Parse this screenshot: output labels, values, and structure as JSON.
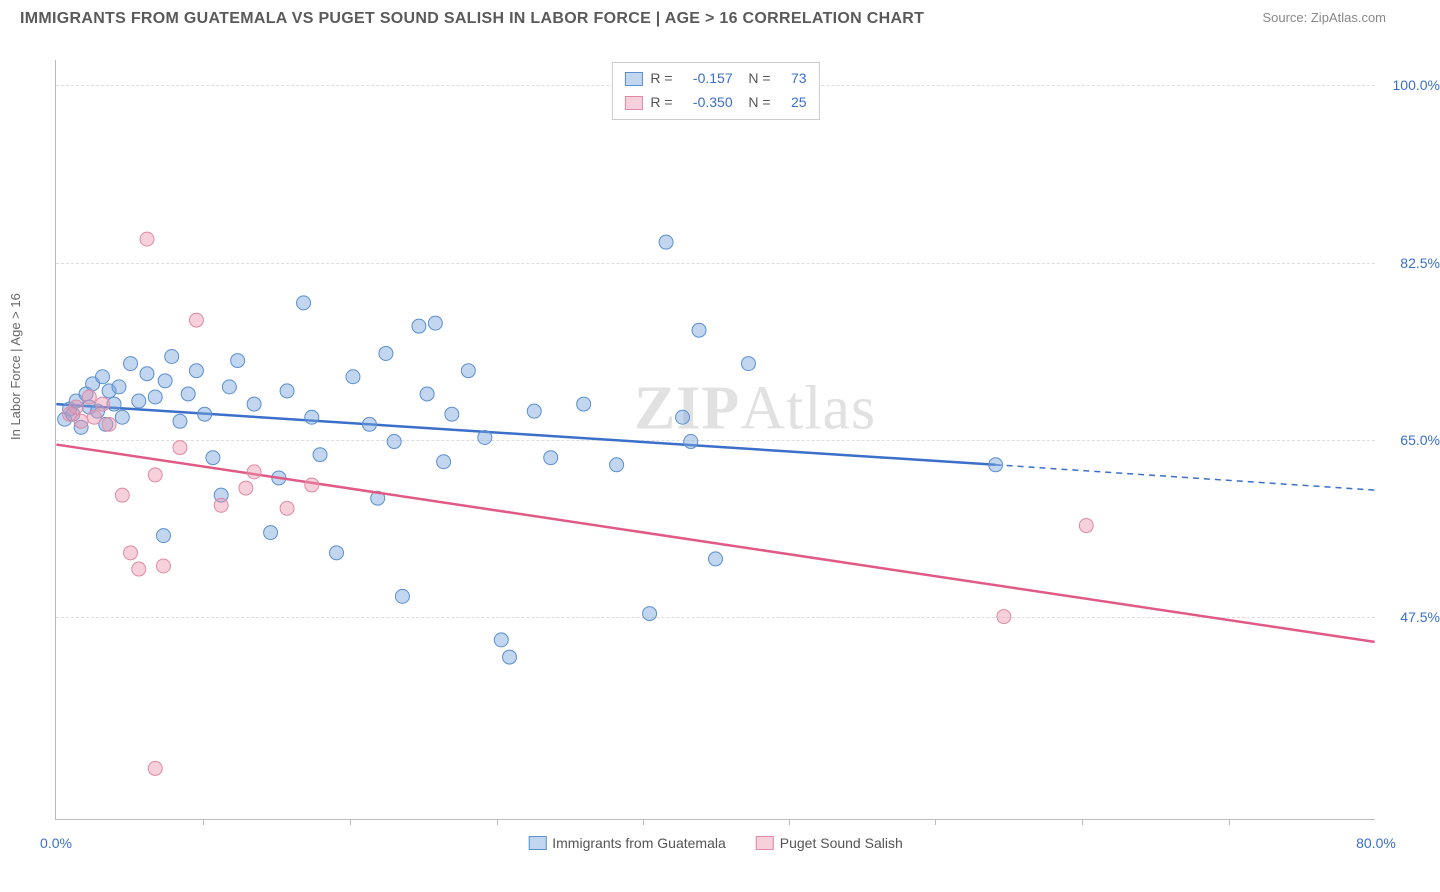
{
  "title": "IMMIGRANTS FROM GUATEMALA VS PUGET SOUND SALISH IN LABOR FORCE | AGE > 16 CORRELATION CHART",
  "source": "Source: ZipAtlas.com",
  "ylabel": "In Labor Force | Age > 16",
  "watermark_1": "ZIP",
  "watermark_2": "Atlas",
  "chart": {
    "type": "scatter",
    "xlim": [
      0,
      80
    ],
    "ylim": [
      27.5,
      102.5
    ],
    "xticks": [
      0,
      80
    ],
    "xtick_labels": [
      "0.0%",
      "80.0%"
    ],
    "xtick_minor": [
      8.9,
      17.8,
      26.7,
      35.6,
      44.4,
      53.3,
      62.2,
      71.1
    ],
    "yticks": [
      47.5,
      65.0,
      82.5,
      100.0
    ],
    "ytick_labels": [
      "47.5%",
      "65.0%",
      "82.5%",
      "100.0%"
    ],
    "grid_color": "#dddddd",
    "background_color": "#ffffff",
    "axis_color": "#bbbbbb",
    "series": [
      {
        "name": "Immigrants from Guatemala",
        "marker_fill": "rgba(120,165,220,0.45)",
        "marker_stroke": "#5a8fd0",
        "line_color": "#3b6fc9",
        "marker_radius": 7,
        "line_width": 2.5,
        "R": "-0.157",
        "N": "73",
        "trend_start": [
          0,
          68.5
        ],
        "trend_end_solid": [
          57,
          62.5
        ],
        "trend_end_dash": [
          80,
          60
        ],
        "points": [
          [
            0.5,
            67
          ],
          [
            0.8,
            68
          ],
          [
            1.0,
            67.5
          ],
          [
            1.2,
            68.8
          ],
          [
            1.5,
            66.2
          ],
          [
            1.8,
            69.5
          ],
          [
            2.0,
            68.2
          ],
          [
            2.2,
            70.5
          ],
          [
            2.5,
            67.8
          ],
          [
            2.8,
            71.2
          ],
          [
            3.0,
            66.5
          ],
          [
            3.2,
            69.8
          ],
          [
            3.5,
            68.5
          ],
          [
            3.8,
            70.2
          ],
          [
            4.0,
            67.2
          ],
          [
            4.5,
            72.5
          ],
          [
            5.0,
            68.8
          ],
          [
            5.5,
            71.5
          ],
          [
            6.0,
            69.2
          ],
          [
            6.5,
            55.5
          ],
          [
            6.6,
            70.8
          ],
          [
            7.0,
            73.2
          ],
          [
            7.5,
            66.8
          ],
          [
            8.0,
            69.5
          ],
          [
            8.5,
            71.8
          ],
          [
            9.0,
            67.5
          ],
          [
            9.5,
            63.2
          ],
          [
            10.0,
            59.5
          ],
          [
            10.5,
            70.2
          ],
          [
            11.0,
            72.8
          ],
          [
            12.0,
            68.5
          ],
          [
            13.0,
            55.8
          ],
          [
            13.5,
            61.2
          ],
          [
            14.0,
            69.8
          ],
          [
            15.0,
            78.5
          ],
          [
            15.5,
            67.2
          ],
          [
            16.0,
            63.5
          ],
          [
            17.0,
            53.8
          ],
          [
            18.0,
            71.2
          ],
          [
            19.0,
            66.5
          ],
          [
            19.5,
            59.2
          ],
          [
            20.0,
            73.5
          ],
          [
            20.5,
            64.8
          ],
          [
            21.0,
            49.5
          ],
          [
            22.0,
            76.2
          ],
          [
            22.5,
            69.5
          ],
          [
            23.0,
            76.5
          ],
          [
            23.5,
            62.8
          ],
          [
            24.0,
            67.5
          ],
          [
            25.0,
            71.8
          ],
          [
            26.0,
            65.2
          ],
          [
            27.0,
            45.2
          ],
          [
            27.5,
            43.5
          ],
          [
            29.0,
            67.8
          ],
          [
            30.0,
            63.2
          ],
          [
            32.0,
            68.5
          ],
          [
            34.0,
            62.5
          ],
          [
            36.0,
            47.8
          ],
          [
            37.0,
            84.5
          ],
          [
            38.0,
            67.2
          ],
          [
            38.5,
            64.8
          ],
          [
            39.0,
            75.8
          ],
          [
            40.0,
            53.2
          ],
          [
            42.0,
            72.5
          ],
          [
            57.0,
            62.5
          ]
        ]
      },
      {
        "name": "Puget Sound Salish",
        "marker_fill": "rgba(235,150,175,0.45)",
        "marker_stroke": "#e08aa5",
        "line_color": "#e05a85",
        "marker_radius": 7,
        "line_width": 2.5,
        "R": "-0.350",
        "N": "25",
        "trend_start": [
          0,
          64.5
        ],
        "trend_end_solid": [
          80,
          45
        ],
        "trend_end_dash": null,
        "points": [
          [
            0.8,
            67.5
          ],
          [
            1.2,
            68.2
          ],
          [
            1.5,
            66.8
          ],
          [
            2.0,
            69.2
          ],
          [
            2.3,
            67.2
          ],
          [
            2.8,
            68.5
          ],
          [
            3.2,
            66.5
          ],
          [
            4.0,
            59.5
          ],
          [
            4.5,
            53.8
          ],
          [
            5.0,
            52.2
          ],
          [
            5.5,
            84.8
          ],
          [
            6.0,
            61.5
          ],
          [
            6.5,
            52.5
          ],
          [
            7.5,
            64.2
          ],
          [
            8.5,
            76.8
          ],
          [
            10.0,
            58.5
          ],
          [
            11.5,
            60.2
          ],
          [
            12.0,
            61.8
          ],
          [
            14.0,
            58.2
          ],
          [
            15.5,
            60.5
          ],
          [
            6.0,
            32.5
          ],
          [
            57.5,
            47.5
          ],
          [
            62.5,
            56.5
          ]
        ]
      }
    ]
  },
  "stats_box": {
    "rows": [
      {
        "swatch_fill": "rgba(120,165,220,0.45)",
        "swatch_stroke": "#5a8fd0",
        "r_label": "R =",
        "r_val": "-0.157",
        "n_label": "N =",
        "n_val": "73"
      },
      {
        "swatch_fill": "rgba(235,150,175,0.45)",
        "swatch_stroke": "#e08aa5",
        "r_label": "R =",
        "r_val": "-0.350",
        "n_label": "N =",
        "n_val": "25"
      }
    ]
  },
  "legend": {
    "items": [
      {
        "swatch_fill": "rgba(120,165,220,0.45)",
        "swatch_stroke": "#5a8fd0",
        "label": "Immigrants from Guatemala"
      },
      {
        "swatch_fill": "rgba(235,150,175,0.45)",
        "swatch_stroke": "#e08aa5",
        "label": "Puget Sound Salish"
      }
    ]
  }
}
